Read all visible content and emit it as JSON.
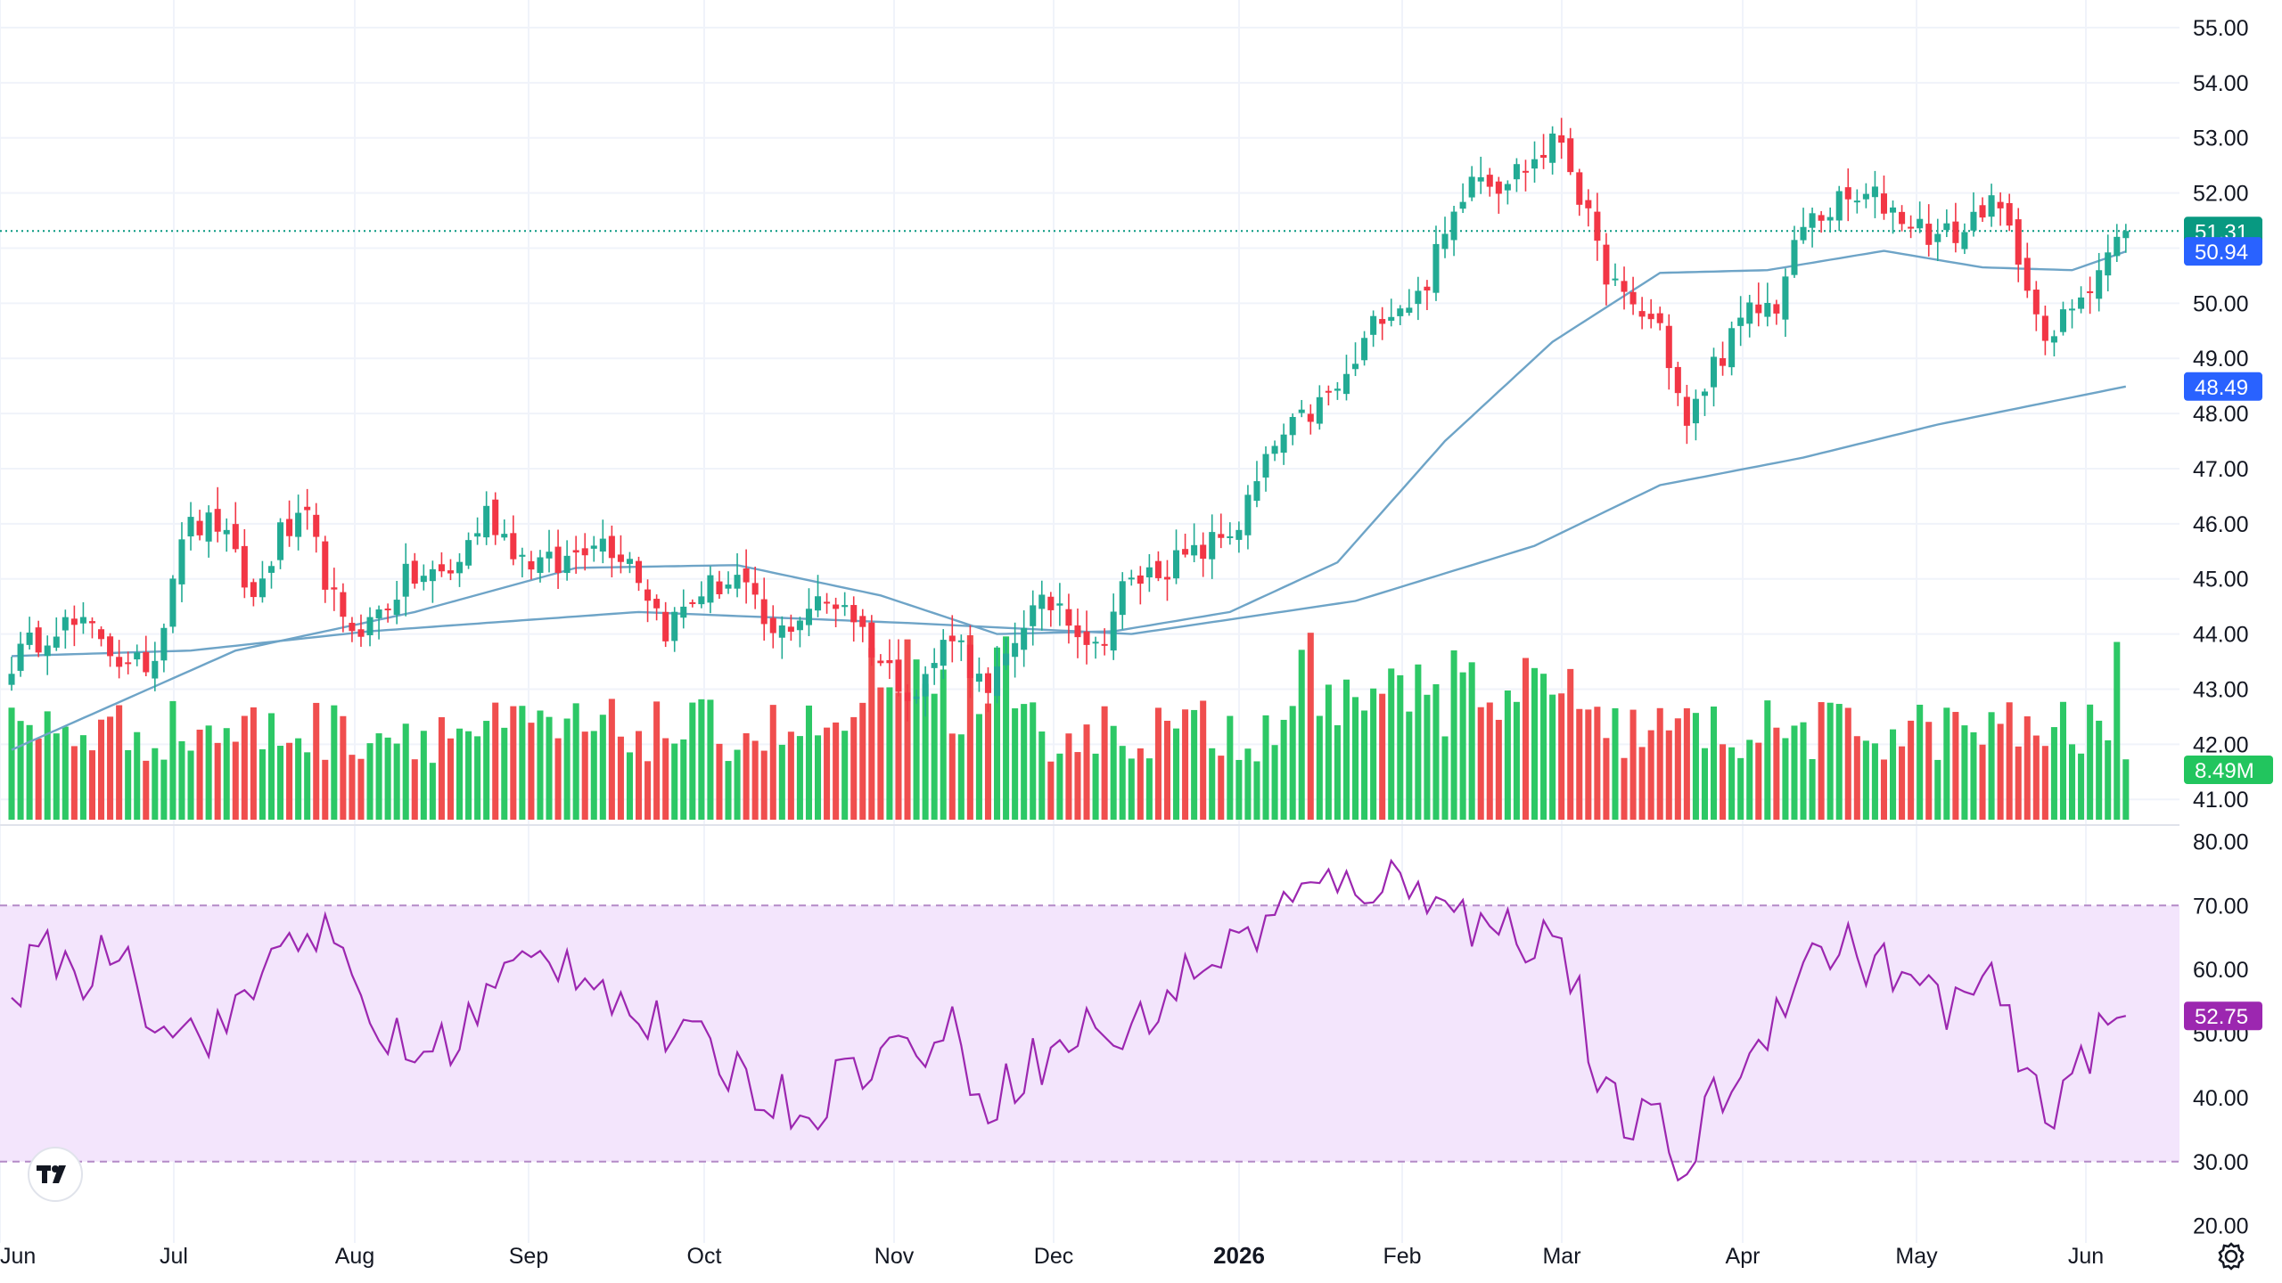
{
  "chart_data": [
    {
      "type": "candlestick",
      "pane": "price",
      "ylim": [
        40.6,
        55.5
      ],
      "y_ticks": [
        "55.00",
        "54.00",
        "53.00",
        "52.00",
        "51.00",
        "50.00",
        "49.00",
        "48.00",
        "47.00",
        "46.00",
        "45.00",
        "44.00",
        "43.00",
        "42.00",
        "41.00"
      ],
      "x_ticks": [
        {
          "label": "Jun",
          "bold": false
        },
        {
          "label": "Jul",
          "bold": false
        },
        {
          "label": "Aug",
          "bold": false
        },
        {
          "label": "Sep",
          "bold": false
        },
        {
          "label": "Oct",
          "bold": false
        },
        {
          "label": "Nov",
          "bold": false
        },
        {
          "label": "Dec",
          "bold": false
        },
        {
          "label": "2026",
          "bold": true
        },
        {
          "label": "Feb",
          "bold": false
        },
        {
          "label": "Mar",
          "bold": false
        },
        {
          "label": "Apr",
          "bold": false
        },
        {
          "label": "May",
          "bold": false
        },
        {
          "label": "Jun",
          "bold": false
        }
      ],
      "close_anchors": [
        [
          0,
          43.5
        ],
        [
          5,
          44.2
        ],
        [
          10,
          44.0
        ],
        [
          13,
          43.3
        ],
        [
          16,
          43.6
        ],
        [
          19,
          45.9
        ],
        [
          23,
          46.0
        ],
        [
          27,
          44.6
        ],
        [
          30,
          45.8
        ],
        [
          33,
          46.0
        ],
        [
          37,
          44.1
        ],
        [
          40,
          44.2
        ],
        [
          44,
          45.0
        ],
        [
          49,
          45.1
        ],
        [
          53,
          46.2
        ],
        [
          57,
          45.4
        ],
        [
          61,
          45.2
        ],
        [
          65,
          45.8
        ],
        [
          69,
          45.4
        ],
        [
          73,
          44.1
        ],
        [
          77,
          44.8
        ],
        [
          81,
          45.0
        ],
        [
          85,
          43.9
        ],
        [
          89,
          44.5
        ],
        [
          93,
          44.6
        ],
        [
          97,
          43.5
        ],
        [
          101,
          42.9
        ],
        [
          105,
          44.1
        ],
        [
          109,
          42.8
        ],
        [
          113,
          44.3
        ],
        [
          117,
          44.6
        ],
        [
          121,
          43.7
        ],
        [
          124,
          44.8
        ],
        [
          128,
          45.2
        ],
        [
          132,
          45.4
        ],
        [
          137,
          46.0
        ],
        [
          141,
          47.4
        ],
        [
          145,
          48.0
        ],
        [
          149,
          48.6
        ],
        [
          153,
          49.9
        ],
        [
          157,
          50.1
        ],
        [
          160,
          51.2
        ],
        [
          163,
          52.5
        ],
        [
          166,
          52.2
        ],
        [
          170,
          52.6
        ],
        [
          173,
          53.0
        ],
        [
          175,
          52.0
        ],
        [
          177,
          50.9
        ],
        [
          180,
          50.0
        ],
        [
          184,
          49.6
        ],
        [
          187,
          47.7
        ],
        [
          190,
          48.9
        ],
        [
          194,
          49.8
        ],
        [
          197,
          50.0
        ],
        [
          200,
          51.4
        ],
        [
          204,
          51.8
        ],
        [
          208,
          51.9
        ],
        [
          212,
          51.5
        ],
        [
          215,
          51.2
        ],
        [
          218,
          51.3
        ],
        [
          220,
          51.8
        ],
        [
          222,
          51.6
        ],
        [
          225,
          50.5
        ],
        [
          227,
          49.1
        ],
        [
          230,
          50.0
        ],
        [
          234,
          50.9
        ],
        [
          236,
          51.31
        ]
      ],
      "sma_fast": [
        [
          0,
          41.9
        ],
        [
          25,
          43.7
        ],
        [
          45,
          44.4
        ],
        [
          63,
          45.2
        ],
        [
          81,
          45.25
        ],
        [
          97,
          44.7
        ],
        [
          110,
          44.0
        ],
        [
          123,
          44.05
        ],
        [
          136,
          44.4
        ],
        [
          148,
          45.3
        ],
        [
          160,
          47.5
        ],
        [
          172,
          49.3
        ],
        [
          184,
          50.55
        ],
        [
          196,
          50.6
        ],
        [
          209,
          50.95
        ],
        [
          220,
          50.65
        ],
        [
          230,
          50.6
        ],
        [
          236,
          50.94
        ]
      ],
      "sma_slow": [
        [
          0,
          43.6
        ],
        [
          20,
          43.7
        ],
        [
          40,
          44.05
        ],
        [
          70,
          44.4
        ],
        [
          100,
          44.2
        ],
        [
          125,
          44.0
        ],
        [
          150,
          44.6
        ],
        [
          170,
          45.6
        ],
        [
          184,
          46.7
        ],
        [
          200,
          47.2
        ],
        [
          215,
          47.8
        ],
        [
          236,
          48.49
        ]
      ],
      "last_price": "51.31",
      "last_price_color": "#089981",
      "sma_fast_value": "50.94",
      "sma_slow_value": "48.49",
      "sma_color": "#2962ff",
      "sma_line_color": "#6ea4c7",
      "up_color": "#22ab94",
      "down_color": "#f23645"
    },
    {
      "type": "bar",
      "pane": "volume",
      "last_volume": "8.49M",
      "up_color": "#22c55e",
      "down_color": "#ef4444"
    },
    {
      "type": "line",
      "pane": "rsi",
      "ylim": [
        18,
        82
      ],
      "y_ticks": [
        "80.00",
        "70.00",
        "60.00",
        "50.00",
        "40.00",
        "30.00",
        "20.00"
      ],
      "band": [
        30,
        70
      ],
      "rsi_anchors": [
        [
          0,
          57
        ],
        [
          5,
          63
        ],
        [
          8,
          58
        ],
        [
          12,
          65
        ],
        [
          15,
          55
        ],
        [
          20,
          50
        ],
        [
          25,
          52
        ],
        [
          28,
          60
        ],
        [
          32,
          67
        ],
        [
          35,
          65
        ],
        [
          40,
          52
        ],
        [
          45,
          46
        ],
        [
          50,
          50
        ],
        [
          55,
          59
        ],
        [
          60,
          62
        ],
        [
          65,
          60
        ],
        [
          70,
          52
        ],
        [
          75,
          49
        ],
        [
          80,
          45
        ],
        [
          85,
          40
        ],
        [
          89,
          38
        ],
        [
          93,
          44
        ],
        [
          97,
          47
        ],
        [
          101,
          48
        ],
        [
          105,
          50
        ],
        [
          109,
          39
        ],
        [
          113,
          45
        ],
        [
          117,
          47
        ],
        [
          121,
          52
        ],
        [
          124,
          48
        ],
        [
          128,
          55
        ],
        [
          133,
          61
        ],
        [
          138,
          65
        ],
        [
          141,
          69
        ],
        [
          145,
          72
        ],
        [
          149,
          73
        ],
        [
          153,
          74
        ],
        [
          157,
          72
        ],
        [
          160,
          74
        ],
        [
          163,
          66
        ],
        [
          166,
          67
        ],
        [
          170,
          65
        ],
        [
          173,
          65
        ],
        [
          175,
          55
        ],
        [
          177,
          40
        ],
        [
          180,
          37
        ],
        [
          184,
          35
        ],
        [
          187,
          28
        ],
        [
          190,
          40
        ],
        [
          194,
          45
        ],
        [
          197,
          55
        ],
        [
          200,
          61
        ],
        [
          204,
          64
        ],
        [
          208,
          61
        ],
        [
          212,
          58
        ],
        [
          215,
          55
        ],
        [
          218,
          55
        ],
        [
          220,
          58
        ],
        [
          222,
          55
        ],
        [
          225,
          42
        ],
        [
          227,
          37
        ],
        [
          230,
          45
        ],
        [
          234,
          50
        ],
        [
          236,
          52.75
        ]
      ],
      "rsi_value": "52.75",
      "line_color": "#9c27b0",
      "band_fill": "#f3e5fc"
    }
  ],
  "logo_text": "TV",
  "settings_icon": "gear-icon"
}
